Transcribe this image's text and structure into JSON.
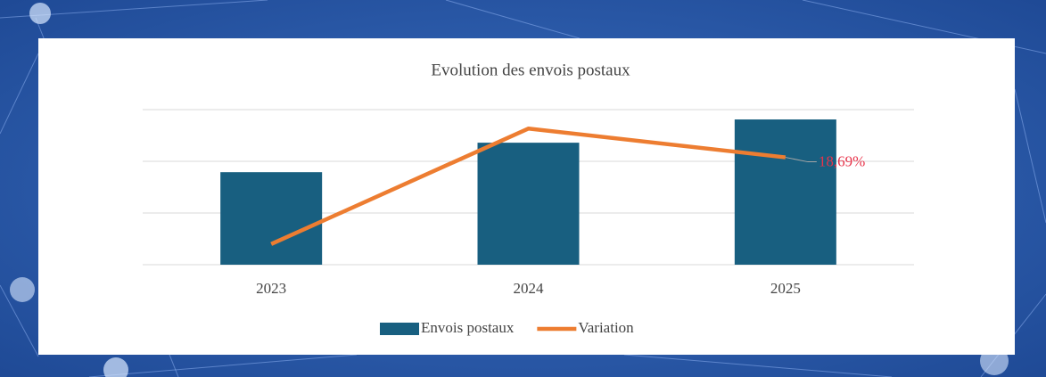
{
  "chart_data": {
    "type": "bar",
    "title": "Evolution des envois postaux",
    "categories": [
      "2023",
      "2024",
      "2025"
    ],
    "series": [
      {
        "name": "Envois postaux",
        "type": "bar",
        "color": "#185f80",
        "values": [
          1.79,
          2.36,
          2.81
        ]
      },
      {
        "name": "Variation",
        "type": "line",
        "axis": "y2",
        "color": "#ed7d31",
        "values": [
          3.6,
          23.7,
          18.69
        ],
        "value_labels": [
          null,
          null,
          "18,69%"
        ],
        "label_color": "#e8334a"
      }
    ],
    "ylim": [
      0,
      3
    ],
    "yticks": [
      0,
      1,
      2,
      3
    ],
    "y2lim": [
      0,
      27
    ],
    "grid": true,
    "legend": "bottom"
  }
}
